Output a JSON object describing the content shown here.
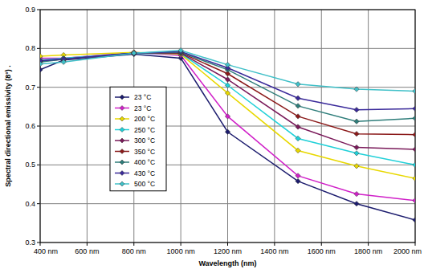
{
  "chart_data": {
    "type": "line",
    "x_label": "Wavelength (nm)",
    "y_label": "Spectral directional emissivity (8°) .",
    "x": [
      400,
      500,
      800,
      1000,
      1200,
      1500,
      1750,
      2000
    ],
    "xlim": [
      400,
      2000
    ],
    "xticks": [
      {
        "value": 400,
        "label": "400 nm"
      },
      {
        "value": 600,
        "label": "600 nm"
      },
      {
        "value": 800,
        "label": "800 nm"
      },
      {
        "value": 1000,
        "label": "1000 nm"
      },
      {
        "value": 1200,
        "label": "1200 nm"
      },
      {
        "value": 1400,
        "label": "1400 nm"
      },
      {
        "value": 1600,
        "label": "1600 nm"
      },
      {
        "value": 1800,
        "label": "1800 nm"
      },
      {
        "value": 2000,
        "label": "2000 nm"
      }
    ],
    "ylim": [
      0.3,
      0.9
    ],
    "yticks": [
      0.3,
      0.4,
      0.5,
      0.6,
      0.7,
      0.8,
      0.9
    ],
    "grid": true,
    "legend": "left",
    "marker": "diamond",
    "series": [
      {
        "name": "23 °C",
        "color": "#1c1c6e",
        "values": [
          0.745,
          0.77,
          0.785,
          0.775,
          0.585,
          0.458,
          0.4,
          0.358
        ]
      },
      {
        "name": "23 °C",
        "color": "#d020c8",
        "values": [
          0.775,
          0.775,
          0.79,
          0.782,
          0.625,
          0.472,
          0.425,
          0.408
        ]
      },
      {
        "name": "200 °C",
        "color": "#e8d800",
        "values": [
          0.78,
          0.783,
          0.79,
          0.785,
          0.685,
          0.537,
          0.497,
          0.465
        ]
      },
      {
        "name": "250 °C",
        "color": "#20d0d8",
        "values": [
          0.77,
          0.775,
          0.788,
          0.787,
          0.705,
          0.568,
          0.53,
          0.5
        ]
      },
      {
        "name": "300 °C",
        "color": "#7a1a5a",
        "values": [
          0.768,
          0.772,
          0.788,
          0.788,
          0.72,
          0.598,
          0.545,
          0.54
        ]
      },
      {
        "name": "350 °C",
        "color": "#8b1a1a",
        "values": [
          0.767,
          0.772,
          0.788,
          0.789,
          0.735,
          0.625,
          0.58,
          0.578
        ]
      },
      {
        "name": "400 °C",
        "color": "#2e7d7a",
        "values": [
          0.765,
          0.772,
          0.788,
          0.79,
          0.745,
          0.652,
          0.612,
          0.62
        ]
      },
      {
        "name": "430 °C",
        "color": "#3a2a9a",
        "values": [
          0.768,
          0.773,
          0.788,
          0.792,
          0.75,
          0.672,
          0.642,
          0.645
        ]
      },
      {
        "name": "500 °C",
        "color": "#40c0c8",
        "values": [
          0.76,
          0.765,
          0.788,
          0.795,
          0.758,
          0.708,
          0.695,
          0.69
        ]
      }
    ]
  }
}
